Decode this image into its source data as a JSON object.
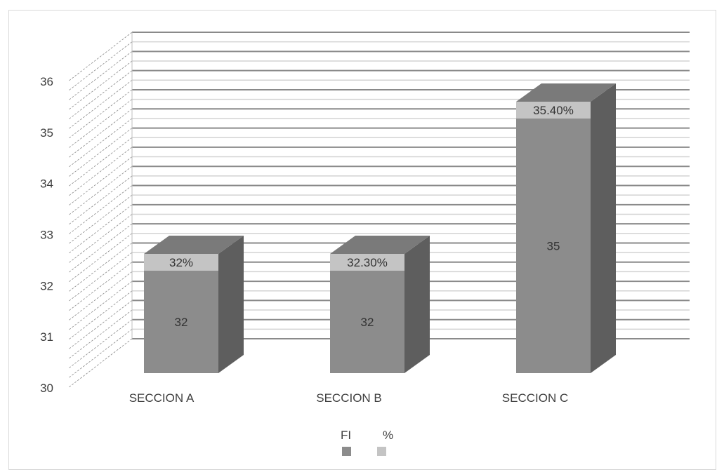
{
  "chart_data": {
    "type": "bar",
    "style": "3d-stacked-column",
    "title": "",
    "xlabel": "",
    "ylabel": "",
    "categories": [
      "SECCION A",
      "SECCION B",
      "SECCION C"
    ],
    "series": [
      {
        "name": "FI",
        "values": [
          32,
          32,
          35
        ],
        "data_labels": [
          "32",
          "32",
          "35"
        ],
        "color": "#8c8c8c"
      },
      {
        "name": "%",
        "values": [
          0.32,
          0.323,
          0.354
        ],
        "data_labels": [
          "32%",
          "32.30%",
          "35.40%"
        ],
        "color": "#c4c4c4"
      }
    ],
    "ylim": [
      30,
      36
    ],
    "yticks": [
      "30",
      "31",
      "32",
      "33",
      "34",
      "35",
      "36"
    ],
    "grid": true,
    "legend": "bottom"
  },
  "colors": {
    "fi_front": "#8c8c8c",
    "fi_side": "#5e5e5e",
    "fi_top": "#7a7a7a",
    "pct_front": "#c4c4c4",
    "grid_dark": "#8a8a8a",
    "grid_light": "#d3d3d3",
    "axis_text": "#404040"
  }
}
